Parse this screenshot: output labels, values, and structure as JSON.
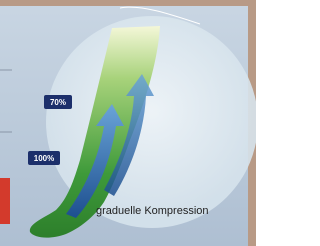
{
  "labels": {
    "upper": "70%",
    "lower": "100%"
  },
  "caption": "graduelle Kompression"
}
